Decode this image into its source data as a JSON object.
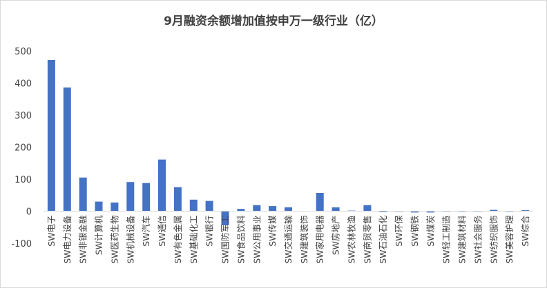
{
  "chart_data": {
    "type": "bar",
    "title": "9月融资余额增加值按申万一级行业（亿）",
    "xlabel": "",
    "ylabel": "",
    "ylim": [
      -100,
      500
    ],
    "yticks": [
      -100,
      0,
      100,
      200,
      300,
      400,
      500
    ],
    "grid": false,
    "legend": "none",
    "bar_color": "#4472c4",
    "categories": [
      "SW电子",
      "SW电力设备",
      "SW非银金融",
      "SW计算机",
      "SW医药生物",
      "SW机械设备",
      "SW汽车",
      "SW通信",
      "SW有色金属",
      "SW基础化工",
      "SW银行",
      "SW国防军工",
      "SW食品饮料",
      "SW公用事业",
      "SW传媒",
      "SW交通运输",
      "SW建筑装饰",
      "SW家用电器",
      "SW房地产",
      "SW农林牧渔",
      "SW商贸零售",
      "SW石油石化",
      "SW环保",
      "SW钢铁",
      "SW煤炭",
      "SW轻工制造",
      "SW建筑材料",
      "SW社会服务",
      "SW纺织服饰",
      "SW美容护理",
      "SW综合"
    ],
    "values": [
      472,
      386,
      105,
      30,
      27,
      91,
      88,
      161,
      75,
      36,
      32,
      -44,
      7,
      19,
      16,
      12,
      1,
      57,
      12,
      2,
      19,
      -3,
      -1,
      -4,
      -4,
      -1,
      -2,
      0,
      4,
      -2,
      3
    ]
  }
}
